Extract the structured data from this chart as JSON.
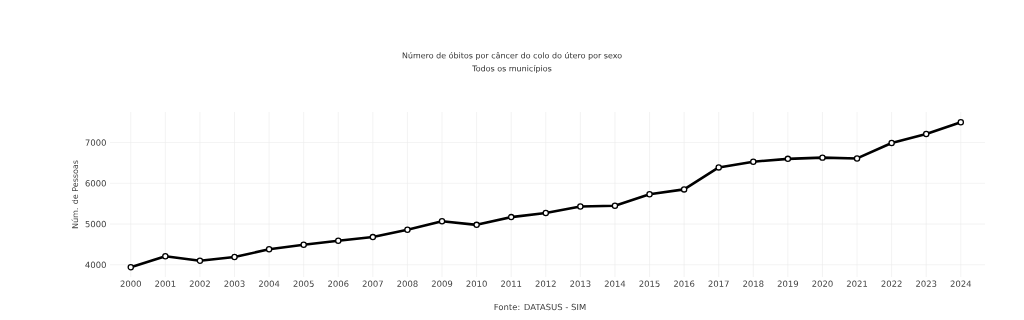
{
  "chart_data": {
    "type": "line",
    "title": "Número de óbitos por câncer do colo do útero por sexo",
    "subtitle": "Todos os municípios",
    "ylabel": "Núm. de Pessoas",
    "categories": [
      "2000",
      "2001",
      "2002",
      "2003",
      "2004",
      "2005",
      "2006",
      "2007",
      "2008",
      "2009",
      "2010",
      "2011",
      "2012",
      "2013",
      "2014",
      "2015",
      "2016",
      "2017",
      "2018",
      "2019",
      "2020",
      "2021",
      "2022",
      "2023",
      "2024"
    ],
    "series": [
      {
        "color": "#000000",
        "values": [
          3940,
          4210,
          4100,
          4190,
          4380,
          4490,
          4590,
          4680,
          4860,
          5070,
          4980,
          5170,
          5270,
          5430,
          5450,
          5730,
          5850,
          6390,
          6530,
          6600,
          6630,
          6610,
          6990,
          7210,
          7500
        ]
      }
    ],
    "ylim": [
      3700,
      7750
    ],
    "yticks": [
      4000,
      5000,
      6000,
      7000
    ],
    "grid": true,
    "marker": "circle",
    "line_style": "solid",
    "annotations": [
      "Fonte: DATASUS - SIM"
    ]
  }
}
